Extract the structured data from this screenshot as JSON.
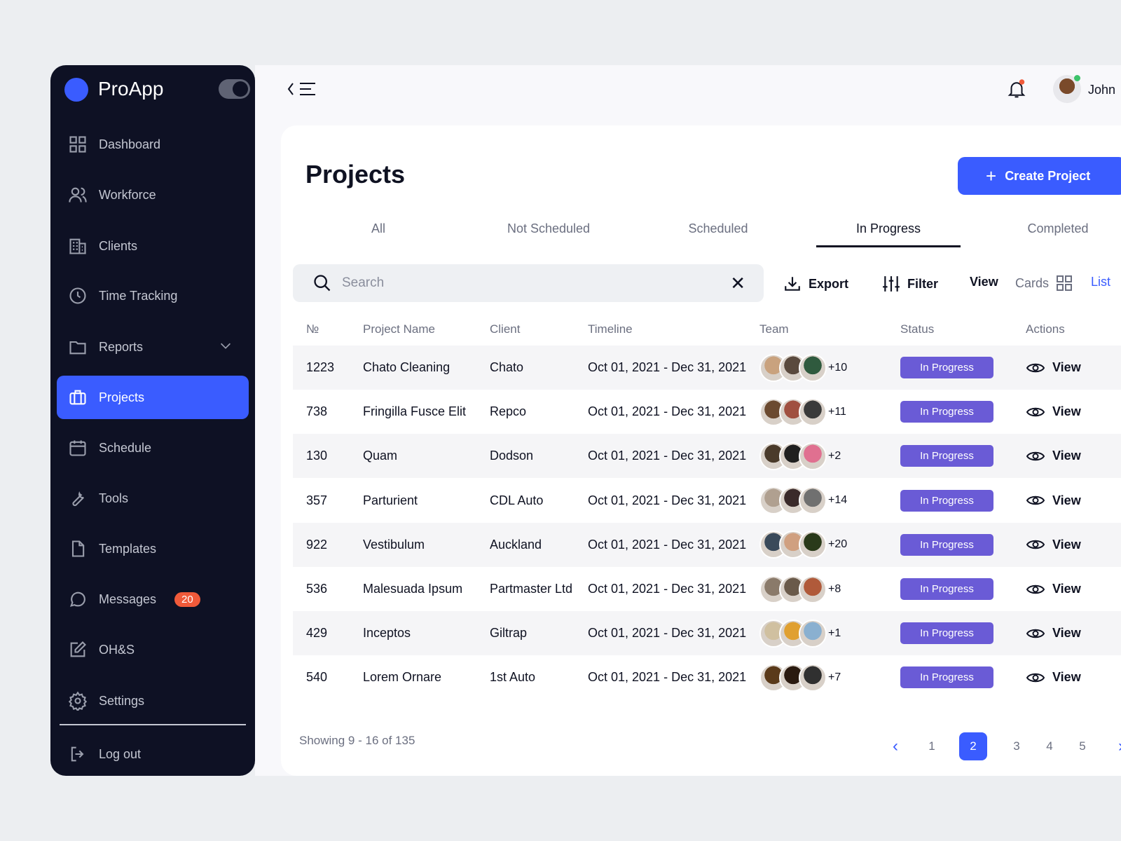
{
  "app": {
    "name": "ProApp",
    "brand_color": "#3a5cff"
  },
  "sidebar": {
    "items": [
      {
        "label": "Dashboard",
        "icon": "grid-icon"
      },
      {
        "label": "Workforce",
        "icon": "users-icon"
      },
      {
        "label": "Clients",
        "icon": "building-icon"
      },
      {
        "label": "Time Tracking",
        "icon": "clock-icon"
      },
      {
        "label": "Reports",
        "icon": "folder-icon"
      },
      {
        "label": "Projects",
        "icon": "briefcase-icon",
        "active": true
      },
      {
        "label": "Schedule",
        "icon": "calendar-icon"
      },
      {
        "label": "Tools",
        "icon": "wrench-icon"
      },
      {
        "label": "Templates",
        "icon": "file-icon"
      },
      {
        "label": "Messages",
        "icon": "chat-icon",
        "badge": "20"
      },
      {
        "label": "OH&S",
        "icon": "edit-icon"
      },
      {
        "label": "Settings",
        "icon": "gear-icon"
      }
    ],
    "logout": "Log out"
  },
  "header": {
    "user": "John"
  },
  "main": {
    "title": "Projects",
    "create_label": "Create Project",
    "tabs": [
      "All",
      "Not Scheduled",
      "Scheduled",
      "In Progress",
      "Completed"
    ],
    "active_tab": "In Progress",
    "search_placeholder": "Search",
    "toolbar": {
      "export": "Export",
      "filter": "Filter",
      "view": "View",
      "cards": "Cards",
      "list": "List"
    },
    "columns": [
      "№",
      "Project Name",
      "Client",
      "Timeline",
      "Team",
      "Status",
      "Actions"
    ],
    "rows": [
      {
        "no": "1223",
        "name": "Chato Cleaning",
        "client": "Chato",
        "timeline": "Oct 01, 2021 - Dec 31, 2021",
        "more": "+10",
        "status": "In Progress",
        "action": "View"
      },
      {
        "no": "738",
        "name": "Fringilla Fusce Elit",
        "client": "Repco",
        "timeline": "Oct 01, 2021 - Dec 31, 2021",
        "more": "+11",
        "status": "In Progress",
        "action": "View"
      },
      {
        "no": "130",
        "name": "Quam",
        "client": "Dodson",
        "timeline": "Oct 01, 2021 - Dec 31, 2021",
        "more": "+2",
        "status": "In Progress",
        "action": "View"
      },
      {
        "no": "357",
        "name": "Parturient",
        "client": "CDL Auto",
        "timeline": "Oct 01, 2021 - Dec 31, 2021",
        "more": "+14",
        "status": "In Progress",
        "action": "View"
      },
      {
        "no": "922",
        "name": "Vestibulum",
        "client": "Auckland",
        "timeline": "Oct 01, 2021 - Dec 31, 2021",
        "more": "+20",
        "status": "In Progress",
        "action": "View"
      },
      {
        "no": "536",
        "name": "Malesuada Ipsum",
        "client": "Partmaster Ltd",
        "timeline": "Oct 01, 2021 - Dec 31, 2021",
        "more": "+8",
        "status": "In Progress",
        "action": "View"
      },
      {
        "no": "429",
        "name": "Inceptos",
        "client": "Giltrap",
        "timeline": "Oct 01, 2021 - Dec 31, 2021",
        "more": "+1",
        "status": "In Progress",
        "action": "View"
      },
      {
        "no": "540",
        "name": "Lorem Ornare",
        "client": "1st Auto",
        "timeline": "Oct 01, 2021 - Dec 31, 2021",
        "more": "+7",
        "status": "In Progress",
        "action": "View"
      }
    ],
    "footer": {
      "showing": "Showing 9 - 16 of 135",
      "pages": [
        "1",
        "2",
        "3",
        "4",
        "5"
      ],
      "current_page": "2"
    }
  }
}
